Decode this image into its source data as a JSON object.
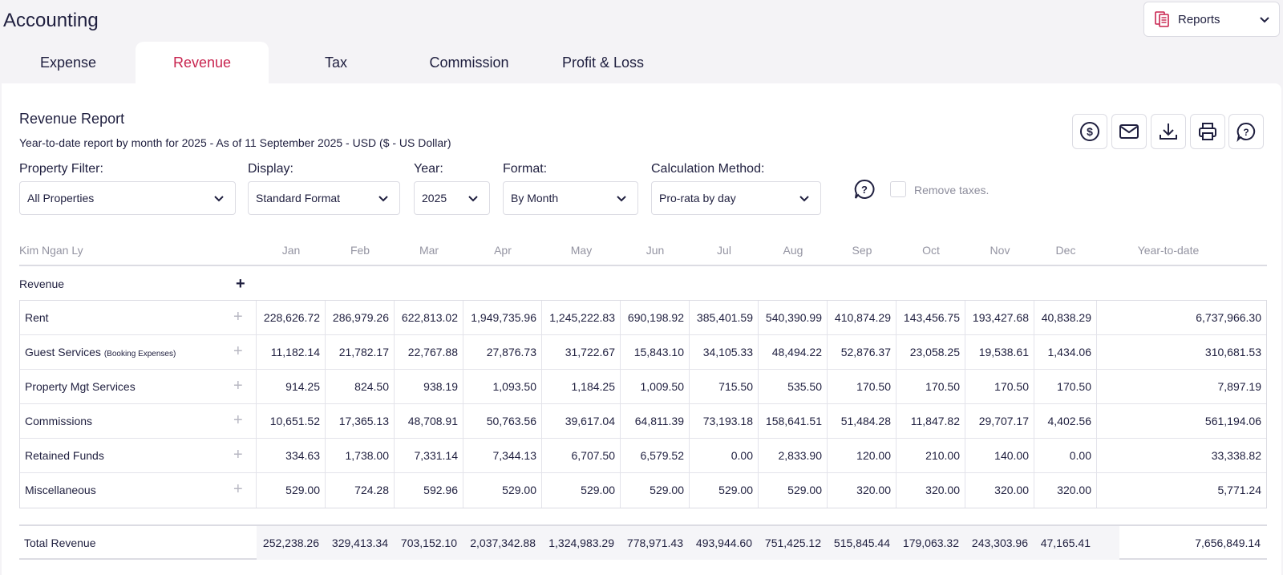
{
  "app": {
    "title": "Accounting"
  },
  "reports_menu": {
    "label": "Reports",
    "icon": "report-icon"
  },
  "tabs": [
    {
      "label": "Expense",
      "active": false
    },
    {
      "label": "Revenue",
      "active": true
    },
    {
      "label": "Tax",
      "active": false
    },
    {
      "label": "Commission",
      "active": false
    },
    {
      "label": "Profit & Loss",
      "active": false
    }
  ],
  "report": {
    "title": "Revenue Report",
    "subtitle": "Year-to-date report by month for 2025 - As of 11 September 2025 - USD ($ - US Dollar)"
  },
  "toolbar": [
    {
      "icon": "dollar-icon"
    },
    {
      "icon": "email-icon"
    },
    {
      "icon": "download-icon"
    },
    {
      "icon": "print-icon"
    },
    {
      "icon": "help-chat-icon"
    }
  ],
  "filters": {
    "property": {
      "label": "Property Filter:",
      "value": "All Properties"
    },
    "display": {
      "label": "Display:",
      "value": "Standard Format"
    },
    "year": {
      "label": "Year:",
      "value": "2025"
    },
    "format": {
      "label": "Format:",
      "value": "By Month"
    },
    "calc": {
      "label": "Calculation Method:",
      "value": "Pro-rata by day"
    },
    "remove_taxes": {
      "label": "Remove taxes.",
      "checked": false
    }
  },
  "table": {
    "owner": "Kim Ngan Ly",
    "months": [
      "Jan",
      "Feb",
      "Mar",
      "Apr",
      "May",
      "Jun",
      "Jul",
      "Aug",
      "Sep",
      "Oct",
      "Nov",
      "Dec"
    ],
    "ytd_header": "Year-to-date",
    "section": "Revenue",
    "rows": [
      {
        "name": "Rent",
        "note": "",
        "values": [
          "228,626.72",
          "286,979.26",
          "622,813.02",
          "1,949,735.96",
          "1,245,222.83",
          "690,198.92",
          "385,401.59",
          "540,390.99",
          "410,874.29",
          "143,456.75",
          "193,427.68",
          "40,838.29"
        ],
        "ytd": "6,737,966.30"
      },
      {
        "name": "Guest Services",
        "note": "(Booking Expenses)",
        "values": [
          "11,182.14",
          "21,782.17",
          "22,767.88",
          "27,876.73",
          "31,722.67",
          "15,843.10",
          "34,105.33",
          "48,494.22",
          "52,876.37",
          "23,058.25",
          "19,538.61",
          "1,434.06"
        ],
        "ytd": "310,681.53"
      },
      {
        "name": "Property Mgt Services",
        "note": "",
        "values": [
          "914.25",
          "824.50",
          "938.19",
          "1,093.50",
          "1,184.25",
          "1,009.50",
          "715.50",
          "535.50",
          "170.50",
          "170.50",
          "170.50",
          "170.50"
        ],
        "ytd": "7,897.19"
      },
      {
        "name": "Commissions",
        "note": "",
        "values": [
          "10,651.52",
          "17,365.13",
          "48,708.91",
          "50,763.56",
          "39,617.04",
          "64,811.39",
          "73,193.18",
          "158,641.51",
          "51,484.28",
          "11,847.82",
          "29,707.17",
          "4,402.56"
        ],
        "ytd": "561,194.06"
      },
      {
        "name": "Retained Funds",
        "note": "",
        "values": [
          "334.63",
          "1,738.00",
          "7,331.14",
          "7,344.13",
          "6,707.50",
          "6,579.52",
          "0.00",
          "2,833.90",
          "120.00",
          "210.00",
          "140.00",
          "0.00"
        ],
        "ytd": "33,338.82"
      },
      {
        "name": "Miscellaneous",
        "note": "",
        "values": [
          "529.00",
          "724.28",
          "592.96",
          "529.00",
          "529.00",
          "529.00",
          "529.00",
          "529.00",
          "320.00",
          "320.00",
          "320.00",
          "320.00"
        ],
        "ytd": "5,771.24"
      }
    ],
    "total": {
      "name": "Total Revenue",
      "values": [
        "252,238.26",
        "329,413.34",
        "703,152.10",
        "2,037,342.88",
        "1,324,983.29",
        "778,971.43",
        "493,944.60",
        "751,425.12",
        "515,845.44",
        "179,063.32",
        "243,303.96",
        "47,165.41"
      ],
      "ytd": "7,656,849.14"
    }
  },
  "colors": {
    "accent": "#c8244f",
    "text": "#1f1f3f",
    "muted": "#9494a2",
    "border": "#dcdce3"
  }
}
